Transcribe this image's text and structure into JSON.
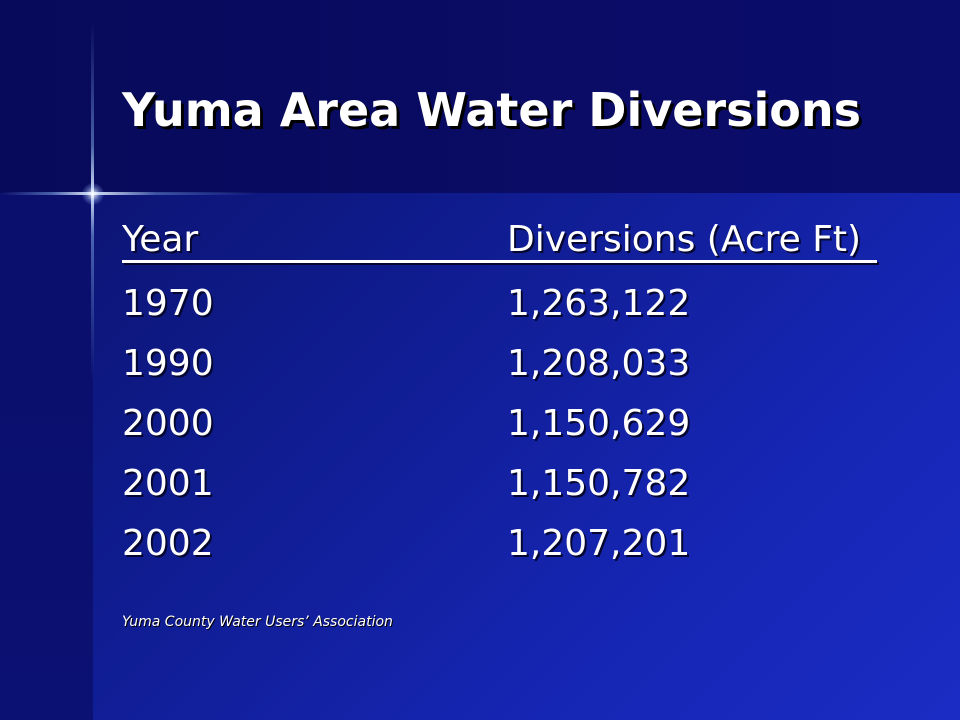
{
  "slide": {
    "title": "Yuma Area Water Diversions",
    "table": {
      "headers": {
        "year": "Year",
        "diversions": "Diversions (Acre Ft)"
      },
      "rows": [
        {
          "year": "1970",
          "diversions": "1,263,122"
        },
        {
          "year": "1990",
          "diversions": "1,208,033"
        },
        {
          "year": "2000",
          "diversions": "1,150,629"
        },
        {
          "year": "2001",
          "diversions": "1,150,782"
        },
        {
          "year": "2002",
          "diversions": "1,207,201"
        }
      ]
    },
    "source": "Yuma County Water Users’ Association"
  },
  "colors": {
    "background": "#1626b4",
    "title_band": "#0a0c66",
    "text": "#ffffff"
  }
}
